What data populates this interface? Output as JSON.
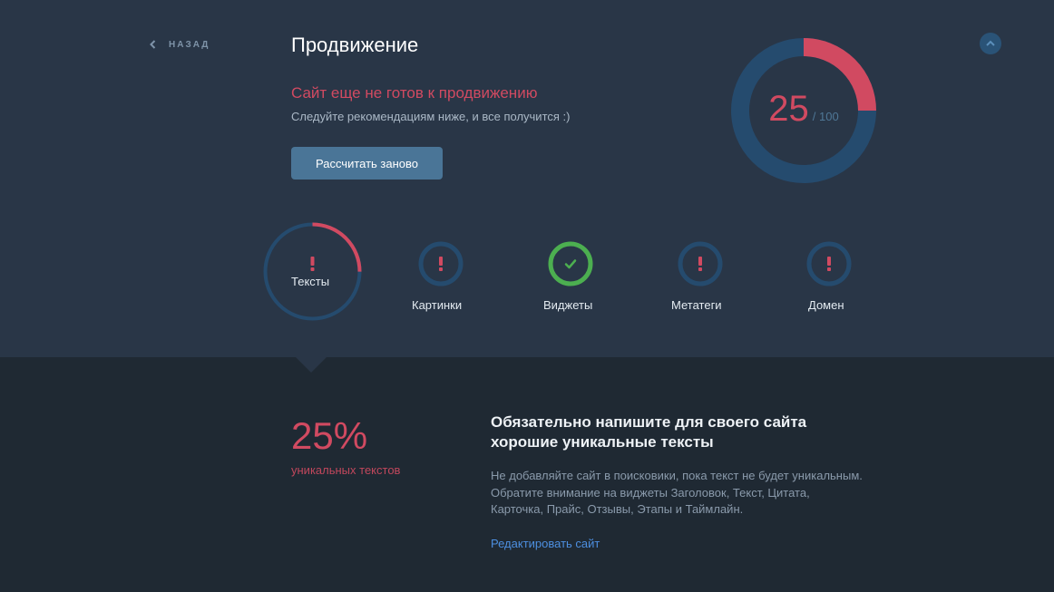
{
  "nav": {
    "back_label": "Назад"
  },
  "header": {
    "title": "Продвижение",
    "status_title": "Сайт еще не готов к продвижению",
    "status_subtitle": "Следуйте рекомендациям ниже, и все получится :)",
    "recalc_label": "Рассчитать заново"
  },
  "score": {
    "value": "25",
    "total": "/ 100",
    "fraction": 0.25
  },
  "colors": {
    "accent_red": "#d14a61",
    "ring_blue": "#254b6e",
    "ok_green": "#4caf50",
    "link_blue": "#4d8fe0"
  },
  "categories": [
    {
      "label": "Тексты",
      "state": "warning",
      "progress": 0.25,
      "active": true
    },
    {
      "label": "Картинки",
      "state": "warning",
      "active": false
    },
    {
      "label": "Виджеты",
      "state": "ok",
      "active": false
    },
    {
      "label": "Метатеги",
      "state": "warning",
      "active": false
    },
    {
      "label": "Домен",
      "state": "warning",
      "active": false
    }
  ],
  "detail": {
    "percent": "25%",
    "percent_label": "уникальных текстов",
    "title": "Обязательно напишите для своего сайта хорошие уникальные тексты",
    "body": "Не добавляйте сайт в поисковики, пока текст не будет уникальным. Обратите внимание на виджеты Заголовок, Текст, Цитата, Карточка, Прайс, Отзывы, Этапы и Таймлайн.",
    "link_label": "Редактировать сайт"
  }
}
